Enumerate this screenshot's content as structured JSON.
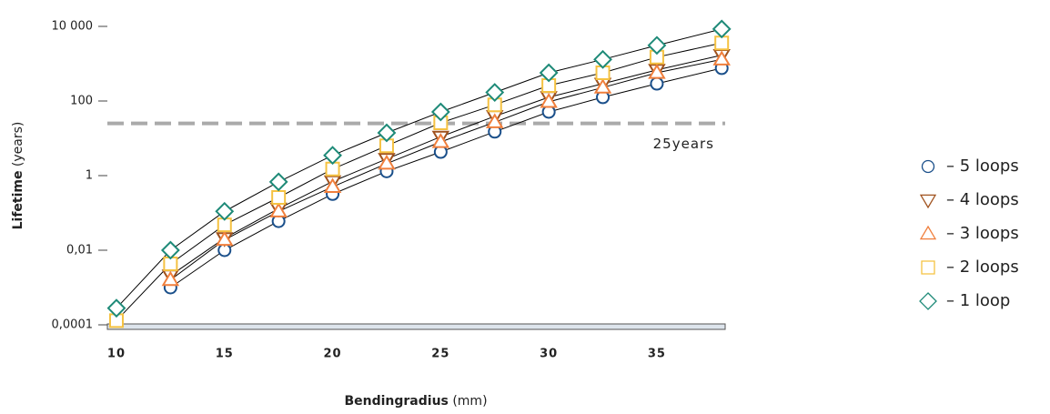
{
  "chart_data": {
    "type": "line",
    "y_label": {
      "bold": "Lifetime",
      "unit": "(years)"
    },
    "x_label": {
      "bold": "Bendingradius",
      "unit": "(mm)"
    },
    "x": [
      10,
      12.5,
      15,
      17.5,
      20,
      22.5,
      25,
      27.5,
      30,
      32.5,
      35,
      38
    ],
    "xlim": [
      9.58,
      38.16
    ],
    "xticks": [
      10,
      15,
      20,
      25,
      30,
      35
    ],
    "ylim": [
      0.0001,
      10000
    ],
    "yscale": "log",
    "yticks": [
      {
        "value": 0.0001,
        "label": "0,0001"
      },
      {
        "value": 0.01,
        "label": "0,01"
      },
      1,
      100,
      {
        "value": 10000,
        "label": "10 000"
      }
    ],
    "line_color": "#000000",
    "reference_line": {
      "value": 25,
      "label": "25years",
      "color": "#aaaaaa"
    },
    "series": [
      {
        "name": "– 5 loops",
        "color": "#1a4f8a",
        "marker": "circle",
        "values": [
          null,
          0.001,
          0.01,
          0.06,
          0.32,
          1.3,
          4.3,
          15,
          51,
          126,
          290,
          760
        ]
      },
      {
        "name": "– 4 loops",
        "color": "#a0521e",
        "marker": "triangle-down",
        "values": [
          null,
          0.0021,
          0.021,
          0.13,
          0.7,
          2.8,
          11,
          39,
          126,
          290,
          680,
          1700
        ]
      },
      {
        "name": "– 3 loops",
        "color": "#f07f3c",
        "marker": "triangle-up",
        "values": [
          null,
          0.0016,
          0.019,
          0.11,
          0.5,
          2.1,
          8,
          27,
          95,
          230,
          570,
          1300
        ]
      },
      {
        "name": "– 2 loops",
        "color": "#f5c242",
        "marker": "square",
        "values": [
          0.00013,
          0.0043,
          0.048,
          0.26,
          1.5,
          6.3,
          26,
          79,
          260,
          570,
          1500,
          3600
        ]
      },
      {
        "name": "– 1 loop",
        "color": "#1e8a78",
        "marker": "diamond",
        "values": [
          0.00028,
          0.01,
          0.11,
          0.68,
          3.5,
          14,
          51,
          170,
          570,
          1300,
          3100,
          8500
        ]
      }
    ]
  }
}
